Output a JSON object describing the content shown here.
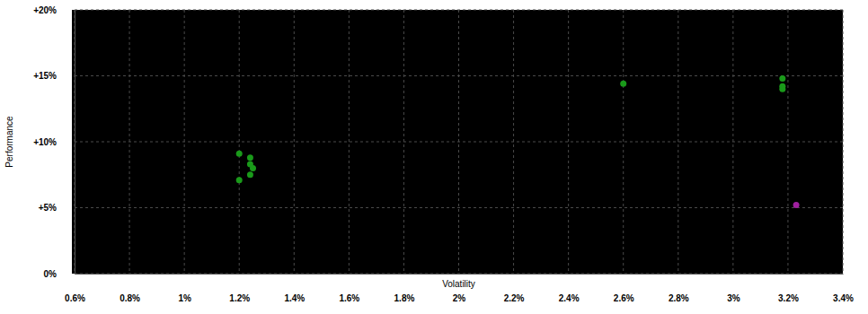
{
  "chart_data": {
    "type": "scatter",
    "xlabel": "Volatility",
    "ylabel": "Performance",
    "xlim": [
      0.6,
      3.4
    ],
    "xticks": [
      {
        "value": 0.6,
        "label": "0.6%"
      },
      {
        "value": 0.8,
        "label": "0.8%"
      },
      {
        "value": 1,
        "label": "1%"
      },
      {
        "value": 1.2,
        "label": "1.2%"
      },
      {
        "value": 1.4,
        "label": "1.4%"
      },
      {
        "value": 1.6,
        "label": "1.6%"
      },
      {
        "value": 1.8,
        "label": "1.8%"
      },
      {
        "value": 2,
        "label": "2%"
      },
      {
        "value": 2.2,
        "label": "2.2%"
      },
      {
        "value": 2.4,
        "label": "2.4%"
      },
      {
        "value": 2.6,
        "label": "2.6%"
      },
      {
        "value": 2.8,
        "label": "2.8%"
      },
      {
        "value": 3,
        "label": "3%"
      },
      {
        "value": 3.2,
        "label": "3.2%"
      },
      {
        "value": 3.4,
        "label": "3.4%"
      }
    ],
    "ylim": [
      0,
      20
    ],
    "yticks": [
      {
        "value": 0,
        "label": "0%"
      },
      {
        "value": 5,
        "label": "+5%"
      },
      {
        "value": 10,
        "label": "+10%"
      },
      {
        "value": 15,
        "label": "+15%"
      },
      {
        "value": 20,
        "label": "+20%"
      }
    ],
    "grid": true,
    "series": [
      {
        "color": "#1a9a1a",
        "marker": "circle",
        "x": [
          1.2,
          1.24,
          1.24,
          1.25,
          1.24,
          1.2,
          2.6,
          3.18,
          3.18,
          3.18
        ],
        "values": [
          9.1,
          8.8,
          8.3,
          8.0,
          7.5,
          7.1,
          14.4,
          14.8,
          14.2,
          14.0
        ]
      },
      {
        "color": "#a020a0",
        "marker": "circle",
        "x": [
          3.23
        ],
        "values": [
          5.2
        ]
      }
    ]
  }
}
